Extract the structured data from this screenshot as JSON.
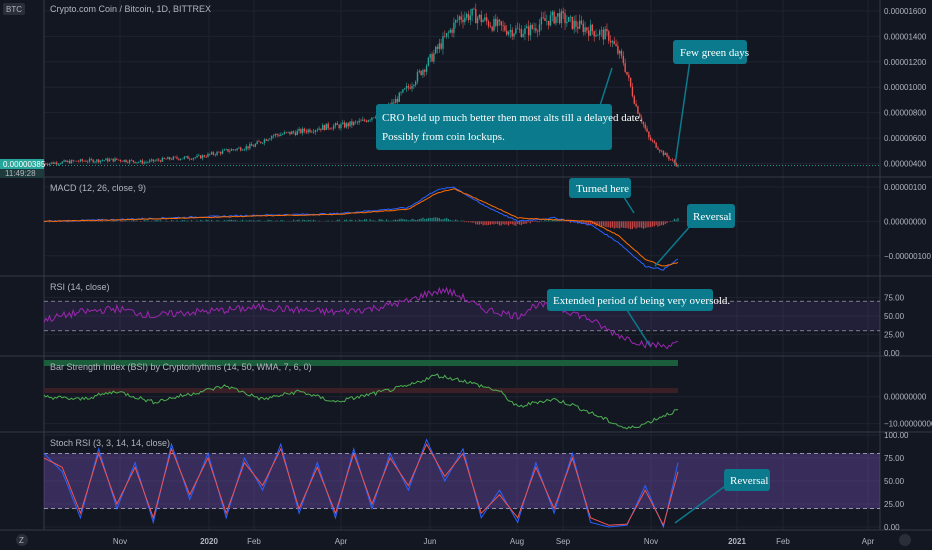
{
  "header": {
    "symbol_badge": "BTC",
    "pair_title": "Crypto.com Coin / Bitcoin, 1D, BITTREX"
  },
  "price_tag": {
    "value": "0.00000385",
    "countdown": "11:49:28"
  },
  "corner_logo": "Z",
  "colors": {
    "background": "#131722",
    "grid": "#1f2330",
    "up": "#26a69a",
    "down": "#ef5350",
    "macd_line": "#2962ff",
    "signal_line": "#ff6d00",
    "rsi": "#9c27b0",
    "bsi": "#4caf50",
    "stoch_k": "#2962ff",
    "stoch_d": "#ef5350",
    "band_fill": "#7e57c2",
    "annotation_bg": "#0a7a8c"
  },
  "chart_data": [
    {
      "id": "price",
      "type": "candlestick",
      "y_ticks": [
        "0.00001600",
        "0.00001400",
        "0.00001200",
        "0.00001000",
        "0.00000800",
        "0.00000600",
        "0.00000400"
      ],
      "ylim": [
        3.1e-06,
        1.67e-05
      ],
      "last_price": 3.85e-06,
      "approx_close": [
        [
          0,
          4e-06
        ],
        [
          20,
          4.2e-06
        ],
        [
          40,
          4.3e-06
        ],
        [
          55,
          4.1e-06
        ],
        [
          70,
          4.4e-06
        ],
        [
          85,
          4.5e-06
        ],
        [
          100,
          5e-06
        ],
        [
          115,
          5.4e-06
        ],
        [
          125,
          6.2e-06
        ],
        [
          140,
          6.5e-06
        ],
        [
          155,
          6.9e-06
        ],
        [
          165,
          7e-06
        ],
        [
          175,
          7.3e-06
        ],
        [
          190,
          8.5e-06
        ],
        [
          200,
          1e-05
        ],
        [
          210,
          1.18e-05
        ],
        [
          220,
          1.38e-05
        ],
        [
          228,
          1.55e-05
        ],
        [
          235,
          1.57e-05
        ],
        [
          245,
          1.5e-05
        ],
        [
          255,
          1.45e-05
        ],
        [
          265,
          1.44e-05
        ],
        [
          275,
          1.52e-05
        ],
        [
          282,
          1.56e-05
        ],
        [
          290,
          1.5e-05
        ],
        [
          300,
          1.45e-05
        ],
        [
          310,
          1.4e-05
        ],
        [
          318,
          1.2e-05
        ],
        [
          325,
          8.5e-06
        ],
        [
          332,
          6e-06
        ],
        [
          340,
          4.8e-06
        ],
        [
          348,
          3.8e-06
        ]
      ]
    },
    {
      "id": "macd",
      "type": "line",
      "title": "MACD (12, 26, close, 9)",
      "y_ticks": [
        "0.00000100",
        "0.00000000",
        "−0.00000100"
      ],
      "ylim": [
        -1.5e-06,
        1.2e-06
      ],
      "series": [
        {
          "values": [
            [
              0,
              0.0
            ],
            [
              40,
              5e-08
            ],
            [
              80,
              1.2e-07
            ],
            [
              120,
              1.8e-07
            ],
            [
              160,
              2.2e-07
            ],
            [
              200,
              4e-07
            ],
            [
              215,
              9e-07
            ],
            [
              225,
              1e-06
            ],
            [
              240,
              5e-07
            ],
            [
              260,
              0.0
            ],
            [
              280,
              1e-07
            ],
            [
              300,
              -1e-07
            ],
            [
              315,
              -6e-07
            ],
            [
              330,
              -1.3e-06
            ],
            [
              340,
              -1.4e-06
            ],
            [
              348,
              -1.1e-06
            ]
          ]
        },
        {
          "values": [
            [
              0,
              0.0
            ],
            [
              40,
              4e-08
            ],
            [
              80,
              1e-07
            ],
            [
              120,
              1.6e-07
            ],
            [
              160,
              2e-07
            ],
            [
              200,
              3.5e-07
            ],
            [
              215,
              8e-07
            ],
            [
              225,
              9.5e-07
            ],
            [
              240,
              6e-07
            ],
            [
              260,
              1e-07
            ],
            [
              280,
              5e-08
            ],
            [
              300,
              0.0
            ],
            [
              315,
              -4e-07
            ],
            [
              330,
              -1.1e-06
            ],
            [
              340,
              -1.3e-06
            ],
            [
              348,
              -1.2e-06
            ]
          ]
        }
      ]
    },
    {
      "id": "rsi",
      "type": "line",
      "title": "RSI (14, close)",
      "y_ticks": [
        "75.00",
        "50.00",
        "25.00",
        "0.00"
      ],
      "ylim": [
        0,
        100
      ],
      "band": [
        30,
        70
      ],
      "series": [
        {
          "values": [
            [
              0,
              45
            ],
            [
              20,
              55
            ],
            [
              40,
              60
            ],
            [
              60,
              50
            ],
            [
              80,
              55
            ],
            [
              100,
              58
            ],
            [
              120,
              62
            ],
            [
              140,
              58
            ],
            [
              160,
              55
            ],
            [
              180,
              60
            ],
            [
              200,
              70
            ],
            [
              210,
              80
            ],
            [
              220,
              85
            ],
            [
              230,
              75
            ],
            [
              240,
              60
            ],
            [
              250,
              55
            ],
            [
              260,
              50
            ],
            [
              270,
              65
            ],
            [
              280,
              62
            ],
            [
              290,
              55
            ],
            [
              300,
              45
            ],
            [
              310,
              30
            ],
            [
              320,
              20
            ],
            [
              330,
              12
            ],
            [
              340,
              10
            ],
            [
              348,
              12
            ]
          ]
        }
      ]
    },
    {
      "id": "bsi",
      "type": "line",
      "title": "Bar Strength Index (BSI) by Cryptorhythms (14, 50, WMA, 7, 6, 0)",
      "y_ticks": [
        "0.00000000",
        "−10.00000000"
      ],
      "ylim": [
        -12,
        14
      ],
      "series": [
        {
          "values": [
            [
              0,
              0
            ],
            [
              20,
              -1
            ],
            [
              40,
              2
            ],
            [
              60,
              -2
            ],
            [
              80,
              1
            ],
            [
              100,
              4
            ],
            [
              120,
              -1
            ],
            [
              140,
              2
            ],
            [
              160,
              -2
            ],
            [
              180,
              1
            ],
            [
              200,
              4
            ],
            [
              215,
              8
            ],
            [
              230,
              6
            ],
            [
              250,
              2
            ],
            [
              260,
              -4
            ],
            [
              270,
              -2
            ],
            [
              280,
              -1
            ],
            [
              290,
              -3
            ],
            [
              300,
              -6
            ],
            [
              310,
              -9
            ],
            [
              320,
              -12
            ],
            [
              330,
              -10
            ],
            [
              340,
              -7
            ],
            [
              348,
              -5
            ]
          ]
        }
      ]
    },
    {
      "id": "stoch",
      "type": "line",
      "title": "Stoch RSI (3, 3, 14, 14, close)",
      "y_ticks": [
        "100.00",
        "75.00",
        "50.00",
        "25.00",
        "0.00"
      ],
      "ylim": [
        0,
        100
      ],
      "band": [
        20,
        80
      ],
      "series": [
        {
          "values": [
            [
              0,
              80
            ],
            [
              10,
              60
            ],
            [
              20,
              10
            ],
            [
              30,
              85
            ],
            [
              40,
              20
            ],
            [
              50,
              70
            ],
            [
              60,
              5
            ],
            [
              70,
              90
            ],
            [
              80,
              30
            ],
            [
              90,
              80
            ],
            [
              100,
              10
            ],
            [
              110,
              75
            ],
            [
              120,
              40
            ],
            [
              130,
              90
            ],
            [
              140,
              15
            ],
            [
              150,
              70
            ],
            [
              160,
              10
            ],
            [
              170,
              85
            ],
            [
              180,
              20
            ],
            [
              190,
              80
            ],
            [
              200,
              40
            ],
            [
              210,
              95
            ],
            [
              220,
              50
            ],
            [
              230,
              85
            ],
            [
              240,
              10
            ],
            [
              250,
              40
            ],
            [
              260,
              5
            ],
            [
              270,
              70
            ],
            [
              280,
              15
            ],
            [
              290,
              80
            ],
            [
              300,
              5
            ],
            [
              310,
              0
            ],
            [
              320,
              2
            ],
            [
              330,
              45
            ],
            [
              340,
              0
            ],
            [
              348,
              70
            ]
          ]
        },
        {
          "values": [
            [
              0,
              75
            ],
            [
              10,
              65
            ],
            [
              20,
              15
            ],
            [
              30,
              80
            ],
            [
              40,
              25
            ],
            [
              50,
              65
            ],
            [
              60,
              10
            ],
            [
              70,
              85
            ],
            [
              80,
              35
            ],
            [
              90,
              75
            ],
            [
              100,
              15
            ],
            [
              110,
              70
            ],
            [
              120,
              45
            ],
            [
              130,
              85
            ],
            [
              140,
              20
            ],
            [
              150,
              65
            ],
            [
              160,
              15
            ],
            [
              170,
              80
            ],
            [
              180,
              25
            ],
            [
              190,
              75
            ],
            [
              200,
              45
            ],
            [
              210,
              90
            ],
            [
              220,
              55
            ],
            [
              230,
              80
            ],
            [
              240,
              15
            ],
            [
              250,
              35
            ],
            [
              260,
              10
            ],
            [
              270,
              65
            ],
            [
              280,
              20
            ],
            [
              290,
              75
            ],
            [
              300,
              10
            ],
            [
              310,
              2
            ],
            [
              320,
              3
            ],
            [
              330,
              40
            ],
            [
              340,
              2
            ],
            [
              348,
              60
            ]
          ]
        }
      ]
    }
  ],
  "x_axis": {
    "labels": [
      "Nov",
      "2020",
      "Feb",
      "Apr",
      "Jun",
      "Aug",
      "Sep",
      "Nov",
      "2021",
      "Feb",
      "Apr"
    ]
  },
  "annotations": {
    "cro_held": {
      "line1": "CRO held up much better then most alts till a delayed date.",
      "line2": "Possibly from coin lockups."
    },
    "few_green": "Few green days",
    "turned_here": "Turned here",
    "reversal_macd": "Reversal",
    "oversold": "Extended period of being very oversold.",
    "reversal_stoch": "Reversal"
  }
}
